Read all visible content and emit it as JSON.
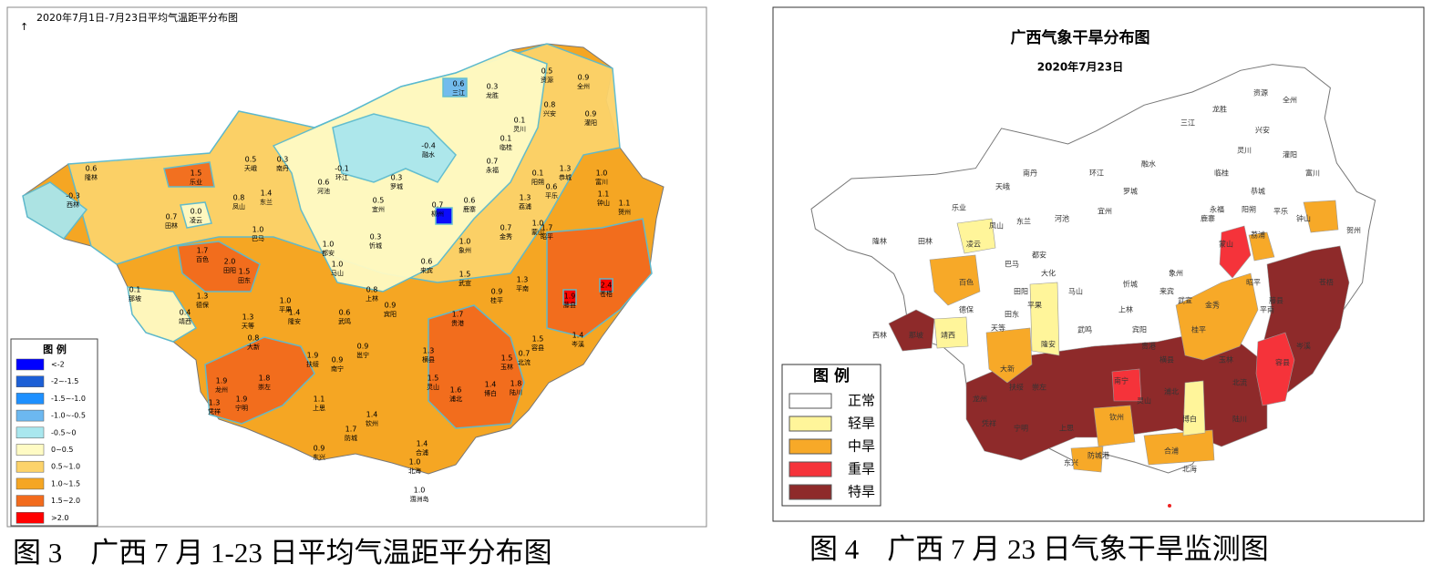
{
  "left_map": {
    "title": "2020年7月1日-7月23日平均气温距平分布图",
    "legend": {
      "title": "图  例",
      "items": [
        {
          "label": "<-2",
          "color": "#0000ff"
        },
        {
          "label": "-2~-1.5",
          "color": "#1c5fd6"
        },
        {
          "label": "-1.5~-1.0",
          "color": "#1e90ff"
        },
        {
          "label": "-1.0~-0.5",
          "color": "#6cb8f0"
        },
        {
          "label": "-0.5~0",
          "color": "#a9e7ee"
        },
        {
          "label": "0~0.5",
          "color": "#fffbc4"
        },
        {
          "label": "0.5~1.0",
          "color": "#fcd36a"
        },
        {
          "label": "1.0~1.5",
          "color": "#f5a623"
        },
        {
          "label": "1.5~2.0",
          "color": "#f26b1d"
        },
        {
          "label": ">2.0",
          "color": "#ff0000"
        }
      ]
    },
    "labels": [
      {
        "value": "-0.3",
        "place": "西林"
      },
      {
        "value": "0.6",
        "place": "隆林"
      },
      {
        "value": "0.7",
        "place": "田林"
      },
      {
        "value": "0.0",
        "place": "凌云"
      },
      {
        "value": "1.5",
        "place": "乐业"
      },
      {
        "value": "0.8",
        "place": "凤山"
      },
      {
        "value": "1.4",
        "place": "东兰"
      },
      {
        "value": "0.5",
        "place": "天峨"
      },
      {
        "value": "0.3",
        "place": "南丹"
      },
      {
        "value": "1.0",
        "place": "巴马"
      },
      {
        "value": "1.7",
        "place": "百色"
      },
      {
        "value": "2.0",
        "place": "田阳"
      },
      {
        "value": "1.5",
        "place": "田东"
      },
      {
        "value": "0.1",
        "place": "那坡"
      },
      {
        "value": "1.3",
        "place": "德保"
      },
      {
        "value": "0.4",
        "place": "靖西"
      },
      {
        "value": "1.3",
        "place": "天等"
      },
      {
        "value": "0.8",
        "place": "大新"
      },
      {
        "value": "1.0",
        "place": "平果"
      },
      {
        "value": "1.4",
        "place": "隆安"
      },
      {
        "value": "0.6",
        "place": "武鸣"
      },
      {
        "value": "1.0",
        "place": "都安"
      },
      {
        "value": "1.0",
        "place": "马山"
      },
      {
        "value": "0.3",
        "place": "忻城"
      },
      {
        "value": "0.8",
        "place": "上林"
      },
      {
        "value": "0.9",
        "place": "宾阳"
      },
      {
        "value": "0.6",
        "place": "来宾"
      },
      {
        "value": "1.0",
        "place": "象州"
      },
      {
        "value": "1.5",
        "place": "武宣"
      },
      {
        "value": "0.9",
        "place": "桂平"
      },
      {
        "value": "1.3",
        "place": "平南"
      },
      {
        "value": "1.7",
        "place": "贵港"
      },
      {
        "value": "1.3",
        "place": "横县"
      },
      {
        "value": "1.9",
        "place": "扶绥"
      },
      {
        "value": "0.9",
        "place": "南宁"
      },
      {
        "value": "0.9",
        "place": "邕宁"
      },
      {
        "value": "1.9",
        "place": "龙州"
      },
      {
        "value": "1.8",
        "place": "崇左"
      },
      {
        "value": "1.9",
        "place": "宁明"
      },
      {
        "value": "1.3",
        "place": "凭祥"
      },
      {
        "value": "1.1",
        "place": "上思"
      },
      {
        "value": "1.7",
        "place": "防城"
      },
      {
        "value": "1.4",
        "place": "钦州"
      },
      {
        "value": "0.9",
        "place": "东兴"
      },
      {
        "value": "1.4",
        "place": "合浦"
      },
      {
        "value": "1.0",
        "place": "北海"
      },
      {
        "value": "1.0",
        "place": "涠洲岛"
      },
      {
        "value": "1.5",
        "place": "灵山"
      },
      {
        "value": "1.6",
        "place": "浦北"
      },
      {
        "value": "1.4",
        "place": "博白"
      },
      {
        "value": "1.8",
        "place": "陆川"
      },
      {
        "value": "1.5",
        "place": "玉林"
      },
      {
        "value": "0.7",
        "place": "北流"
      },
      {
        "value": "1.5",
        "place": "容县"
      },
      {
        "value": "1.4",
        "place": "岑溪"
      },
      {
        "value": "1.9",
        "place": "藤县"
      },
      {
        "value": "2.4",
        "place": "苍梧"
      },
      {
        "value": "1.7",
        "place": "昭平"
      },
      {
        "value": "1.0",
        "place": "蒙山"
      },
      {
        "value": "1.3",
        "place": "荔浦"
      },
      {
        "value": "0.7",
        "place": "金秀"
      },
      {
        "value": "0.6",
        "place": "鹿寨"
      },
      {
        "value": "1.1",
        "place": "钟山"
      },
      {
        "value": "1.1",
        "place": "贺州"
      },
      {
        "value": "1.0",
        "place": "富川"
      },
      {
        "value": "1.3",
        "place": "恭城"
      },
      {
        "value": "0.1",
        "place": "阳朔"
      },
      {
        "value": "0.6",
        "place": "平乐"
      },
      {
        "value": "0.7",
        "place": "永福"
      },
      {
        "value": "0.1",
        "place": "临桂"
      },
      {
        "value": "0.1",
        "place": "灵川"
      },
      {
        "value": "0.8",
        "place": "兴安"
      },
      {
        "value": "0.9",
        "place": "全州"
      },
      {
        "value": "0.9",
        "place": "灌阳"
      },
      {
        "value": "0.5",
        "place": "资源"
      },
      {
        "value": "0.3",
        "place": "龙胜"
      },
      {
        "value": "0.6",
        "place": "三江"
      },
      {
        "value": "-0.4",
        "place": "融水"
      },
      {
        "value": "0.3",
        "place": "罗城"
      },
      {
        "value": "0.5",
        "place": "宜州"
      },
      {
        "value": "-0.1",
        "place": "环江"
      },
      {
        "value": "0.6",
        "place": "河池"
      },
      {
        "value": "0.7",
        "place": "柳州"
      }
    ]
  },
  "right_map": {
    "title": "广西气象干旱分布图",
    "subtitle": "2020年7月23日",
    "legend": {
      "title": "图 例",
      "items": [
        {
          "label": "正常",
          "color": "#ffffff"
        },
        {
          "label": "轻旱",
          "color": "#fff59a"
        },
        {
          "label": "中旱",
          "color": "#f7a928"
        },
        {
          "label": "重旱",
          "color": "#f5333a"
        },
        {
          "label": "特旱",
          "color": "#8e2a2a"
        }
      ]
    },
    "places": [
      "隆林",
      "西林",
      "田林",
      "乐业",
      "凌云",
      "凤山",
      "东兰",
      "天峨",
      "南丹",
      "环江",
      "罗城",
      "融水",
      "三江",
      "龙胜",
      "资源",
      "全州",
      "兴安",
      "灌阳",
      "灵川",
      "临桂",
      "恭城",
      "富川",
      "钟山",
      "贺州",
      "平乐",
      "阳朔",
      "荔浦",
      "永福",
      "鹿寨",
      "宜州",
      "河池",
      "都安",
      "巴马",
      "大化",
      "百色",
      "田阳",
      "田东",
      "那坡",
      "靖西",
      "德保",
      "天等",
      "大新",
      "平果",
      "隆安",
      "马山",
      "上林",
      "武鸣",
      "宾阳",
      "来宾",
      "忻城",
      "象州",
      "武宣",
      "金秀",
      "蒙山",
      "昭平",
      "藤县",
      "苍梧",
      "岑溪",
      "容县",
      "北流",
      "玉林",
      "陆川",
      "博白",
      "浦北",
      "灵山",
      "钦州",
      "防城港",
      "东兴",
      "北海",
      "合浦",
      "上思",
      "宁明",
      "凭祥",
      "龙州",
      "崇左",
      "扶绥",
      "南宁",
      "横县",
      "贵港",
      "桂平",
      "平南"
    ]
  },
  "captions": [
    "图 3　广西 7 月 1-23 日平均气温距平分布图",
    "图 4　广西 7 月 23 日气象干旱监测图"
  ]
}
